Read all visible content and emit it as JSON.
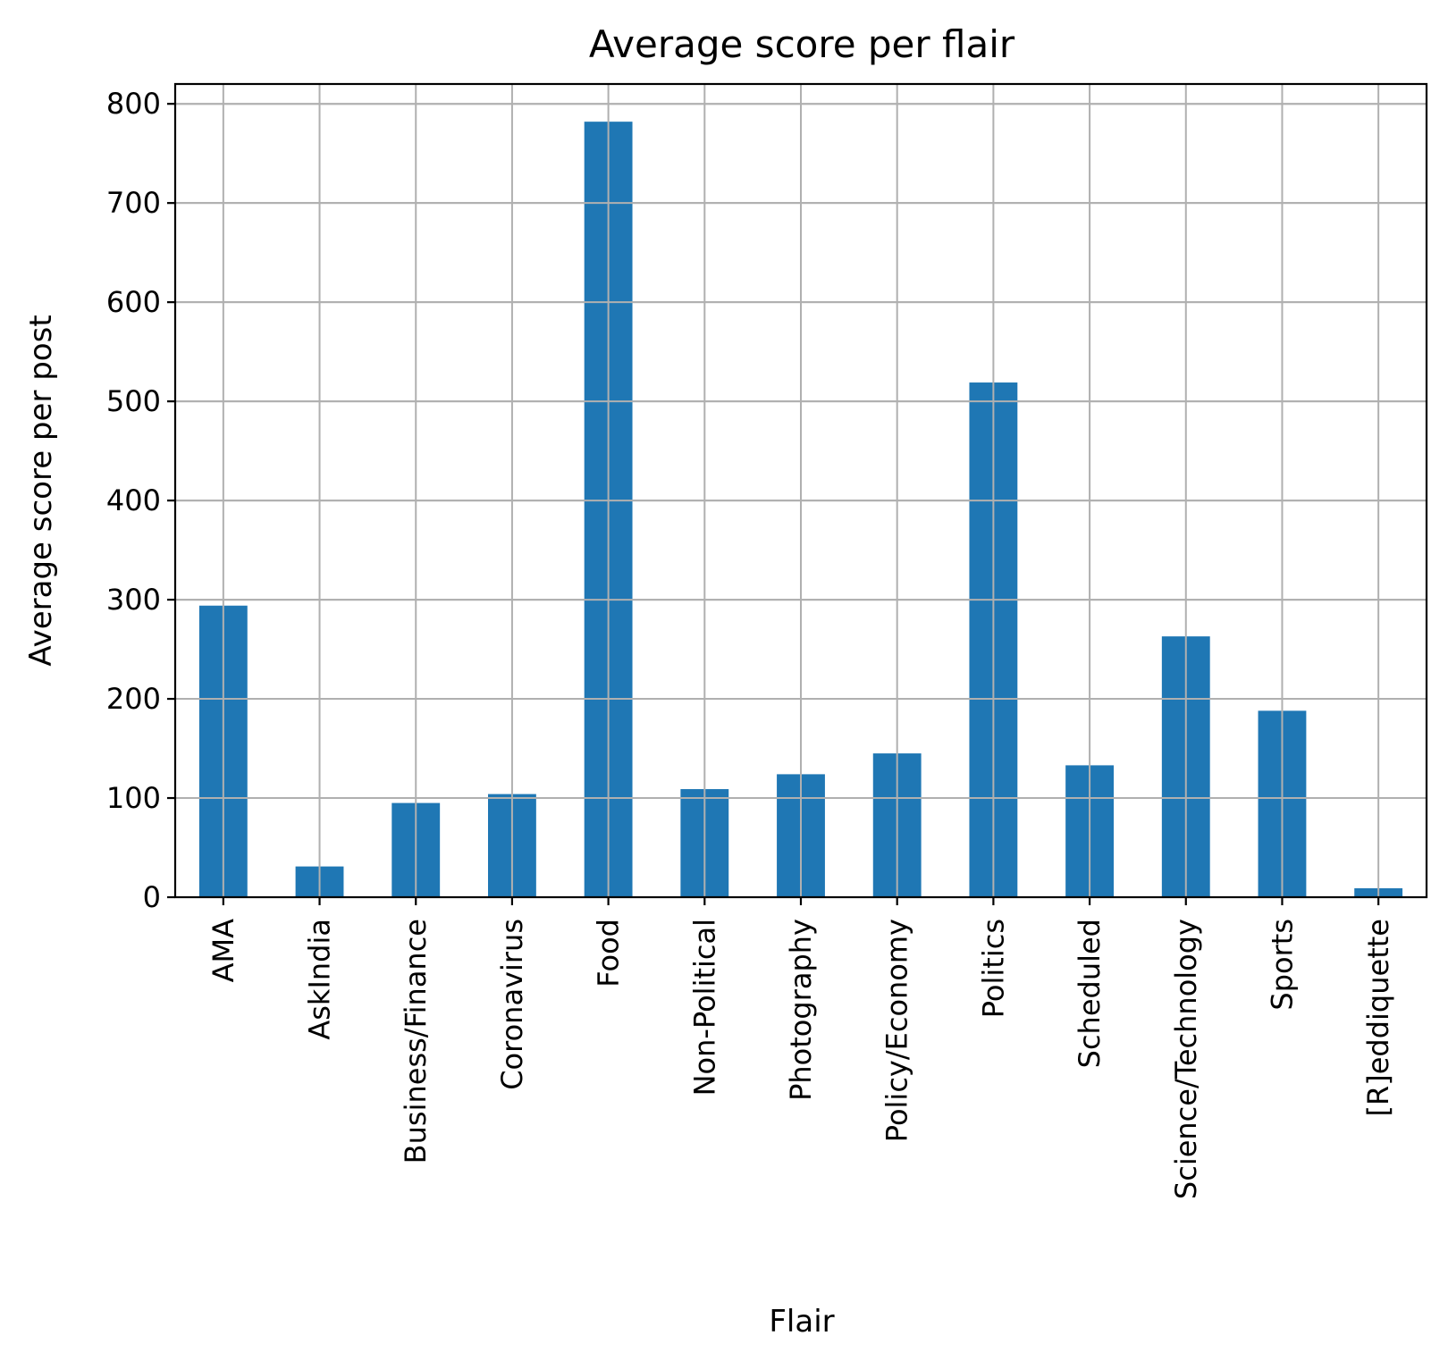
{
  "chart_data": {
    "type": "bar",
    "title": "Average score per flair",
    "xlabel": "Flair",
    "ylabel": "Average score per post",
    "categories": [
      "AMA",
      "AskIndia",
      "Business/Finance",
      "Coronavirus",
      "Food",
      "Non-Political",
      "Photography",
      "Policy/Economy",
      "Politics",
      "Scheduled",
      "Science/Technology",
      "Sports",
      "[R]eddiquette"
    ],
    "values": [
      294,
      31,
      95,
      104,
      782,
      109,
      124,
      145,
      519,
      133,
      263,
      188,
      9
    ],
    "ylim": [
      0,
      820
    ],
    "yticks": [
      0,
      100,
      200,
      300,
      400,
      500,
      600,
      700,
      800
    ],
    "grid": true,
    "bar_color": "#1f77b4",
    "grid_color": "#b0b0b0"
  }
}
